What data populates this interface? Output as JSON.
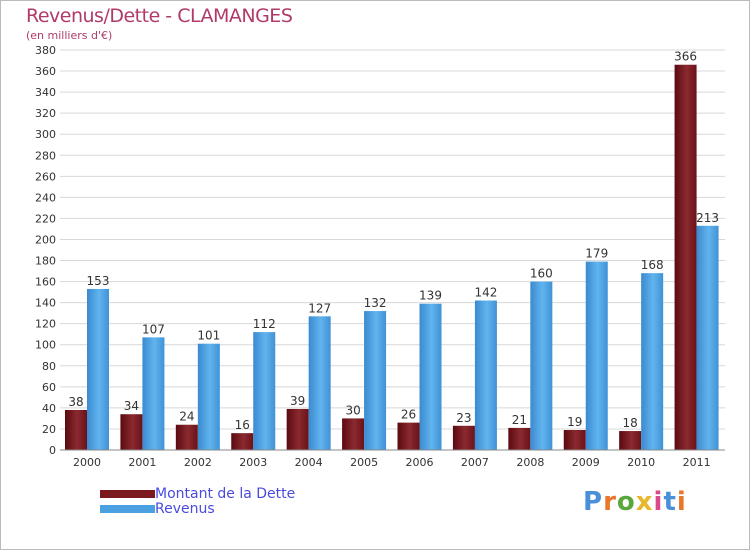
{
  "header": {
    "title": "Revenus/Dette - CLAMANGES",
    "subtitle": "(en milliers d'€)"
  },
  "logo": {
    "text": "Proxiti",
    "letter_colors": [
      "#4a90d9",
      "#e8762b",
      "#5aa83c",
      "#e8b82b",
      "#d94a8a",
      "#4a90d9",
      "#e8762b"
    ]
  },
  "colors": {
    "dette": "#7a1a1f",
    "revenus": "#4aa0e0",
    "grid": "#d8d8d8",
    "axis_text": "#333333"
  },
  "chart_data": {
    "type": "bar",
    "title": "Revenus/Dette - CLAMANGES",
    "subtitle": "(en milliers d'€)",
    "xlabel": "",
    "ylabel": "",
    "ylim": [
      0,
      380
    ],
    "yticks": [
      0,
      20,
      40,
      60,
      80,
      100,
      120,
      140,
      160,
      180,
      200,
      220,
      240,
      260,
      280,
      300,
      320,
      340,
      360,
      380
    ],
    "grid": true,
    "legend_position": "bottom-left",
    "categories": [
      "2000",
      "2001",
      "2002",
      "2003",
      "2004",
      "2005",
      "2006",
      "2007",
      "2008",
      "2009",
      "2010",
      "2011"
    ],
    "series": [
      {
        "name": "Montant de la Dette",
        "values": [
          38,
          34,
          24,
          16,
          39,
          30,
          26,
          23,
          21,
          19,
          18,
          366
        ]
      },
      {
        "name": "Revenus",
        "values": [
          153,
          107,
          101,
          112,
          127,
          132,
          139,
          142,
          160,
          179,
          168,
          213
        ]
      }
    ]
  }
}
